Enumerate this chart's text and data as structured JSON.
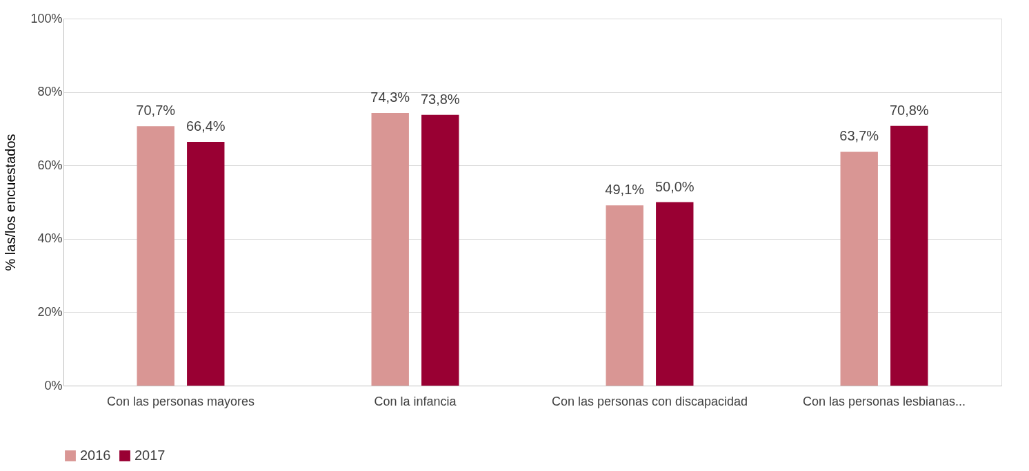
{
  "chart_data": {
    "type": "bar",
    "ylabel": "% las/los encuestados",
    "categories": [
      "Con las personas mayores",
      "Con la infancia",
      "Con las personas con discapacidad",
      "Con las personas lesbianas..."
    ],
    "series": [
      {
        "name": "2016",
        "color": "#d99694",
        "values": [
          70.7,
          74.3,
          49.1,
          63.7
        ],
        "value_labels": [
          "70,7%",
          "74,3%",
          "49,1%",
          "63,7%"
        ]
      },
      {
        "name": "2017",
        "color": "#990033",
        "values": [
          66.4,
          73.8,
          50.0,
          70.8
        ],
        "value_labels": [
          "66,4%",
          "73,8%",
          "50,0%",
          "70,8%"
        ]
      }
    ],
    "ylim": [
      0,
      100
    ],
    "yticks": [
      {
        "value": 0,
        "label": "0%"
      },
      {
        "value": 20,
        "label": "20%"
      },
      {
        "value": 40,
        "label": "40%"
      },
      {
        "value": 60,
        "label": "60%"
      },
      {
        "value": 80,
        "label": "80%"
      },
      {
        "value": 100,
        "label": "100%"
      }
    ],
    "grid": "y",
    "legend": "bottom"
  }
}
